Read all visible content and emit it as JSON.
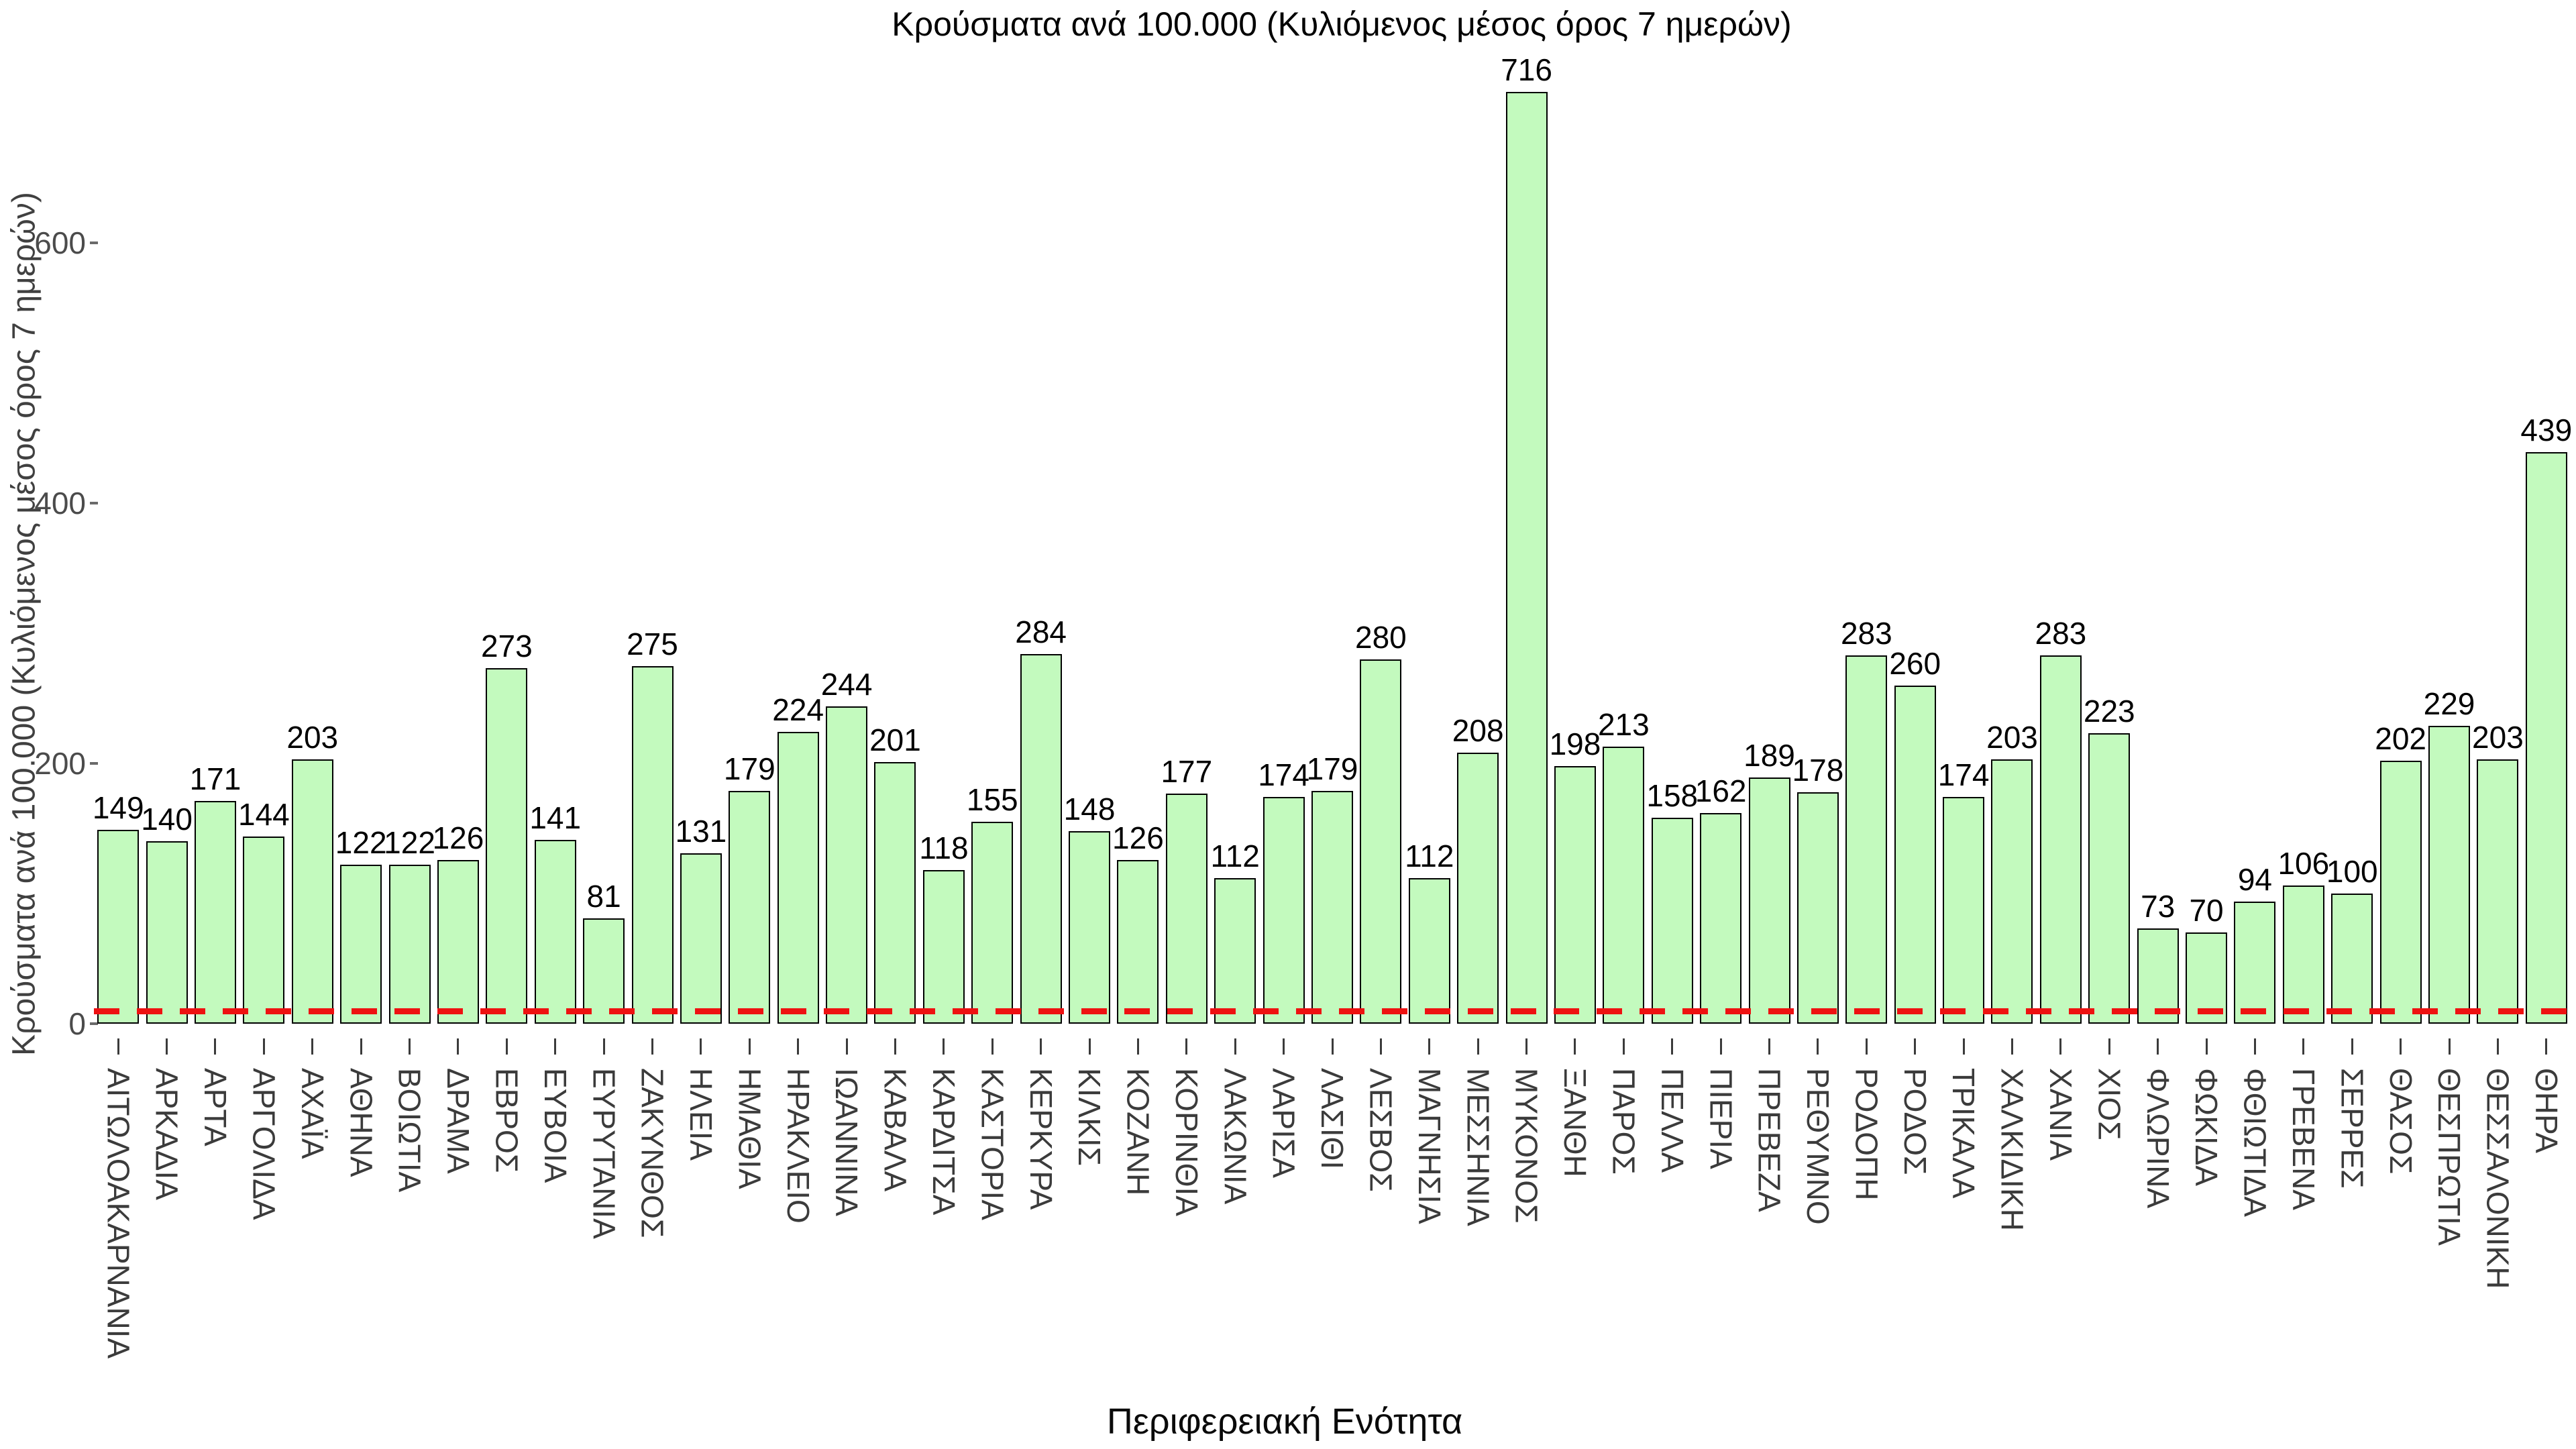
{
  "chart_data": {
    "type": "bar",
    "title": "Κρούσματα ανά 100.000 (Κυλιόμενος μέσος όρος 7 ημερών)",
    "xlabel": "Περιφερειακή Ενότητα",
    "ylabel": "Κρούσματα ανά 100.000 (Κυλιόμενος μέσος όρος 7 ημερών)",
    "categories": [
      "ΑΙΤΩΛΟΑΚΑΡΝΑΝΙΑ",
      "ΑΡΚΑΔΙΑ",
      "ΑΡΤΑ",
      "ΑΡΓΟΛΙΔΑ",
      "ΑΧΑΪΑ",
      "ΑΘΗΝΑ",
      "ΒΟΙΩΤΙΑ",
      "ΔΡΑΜΑ",
      "ΕΒΡΟΣ",
      "ΕΥΒΟΙΑ",
      "ΕΥΡΥΤΑΝΙΑ",
      "ΖΑΚΥΝΘΟΣ",
      "ΗΛΕΙΑ",
      "ΗΜΑΘΙΑ",
      "ΗΡΑΚΛΕΙΟ",
      "ΙΩΑΝΝΙΝΑ",
      "ΚΑΒΑΛΑ",
      "ΚΑΡΔΙΤΣΑ",
      "ΚΑΣΤΟΡΙΑ",
      "ΚΕΡΚΥΡΑ",
      "ΚΙΛΚΙΣ",
      "ΚΟΖΑΝΗ",
      "ΚΟΡΙΝΘΙΑ",
      "ΛΑΚΩΝΙΑ",
      "ΛΑΡΙΣΑ",
      "ΛΑΣΙΘΙ",
      "ΛΕΣΒΟΣ",
      "ΜΑΓΝΗΣΙΑ",
      "ΜΕΣΣΗΝΙΑ",
      "ΜΥΚΟΝΟΣ",
      "ΞΑΝΘΗ",
      "ΠΑΡΟΣ",
      "ΠΕΛΛΑ",
      "ΠΙΕΡΙΑ",
      "ΠΡΕΒΕΖΑ",
      "ΡΕΘΥΜΝΟ",
      "ΡΟΔΟΠΗ",
      "ΡΟΔΟΣ",
      "ΤΡΙΚΑΛΑ",
      "ΧΑΛΚΙΔΙΚΗ",
      "ΧΑΝΙΑ",
      "ΧΙΟΣ",
      "ΦΛΩΡΙΝΑ",
      "ΦΩΚΙΔΑ",
      "ΦΘΙΩΤΙΔΑ",
      "ΓΡΕΒΕΝΑ",
      "ΣΕΡΡΕΣ",
      "ΘΑΣΟΣ",
      "ΘΕΣΠΡΩΤΙΑ",
      "ΘΕΣΣΑΛΟΝΙΚΗ",
      "ΘΗΡΑ"
    ],
    "values": [
      149,
      140,
      171,
      144,
      203,
      122,
      122,
      126,
      273,
      141,
      81,
      275,
      131,
      179,
      224,
      244,
      201,
      118,
      155,
      284,
      148,
      126,
      177,
      112,
      174,
      179,
      280,
      112,
      208,
      716,
      198,
      213,
      158,
      162,
      189,
      178,
      283,
      260,
      174,
      203,
      283,
      223,
      73,
      70,
      94,
      106,
      100,
      202,
      229,
      203,
      439
    ],
    "yticks": [
      0,
      200,
      400,
      600
    ],
    "ylim": [
      0,
      740
    ],
    "grid": false,
    "legend": null,
    "bar_fill_color": "#c3fabe",
    "bar_border_color": "#000000",
    "value_label_color": "#000000",
    "reference_line": {
      "value": 10,
      "color": "#ee1111",
      "style": "dashed"
    }
  }
}
